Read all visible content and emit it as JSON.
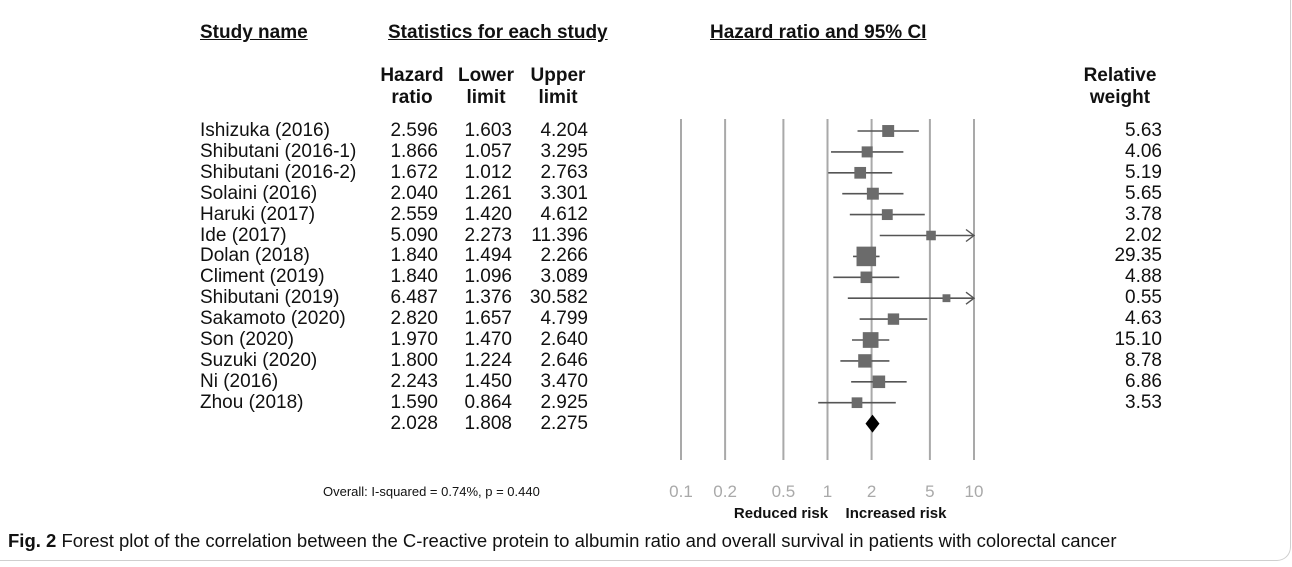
{
  "headers": {
    "study_name": "Study name",
    "statistics": "Statistics for each study",
    "plot_title": "Hazard ratio and 95% CI",
    "col_hr": [
      "Hazard",
      "ratio"
    ],
    "col_lower": [
      "Lower",
      "limit"
    ],
    "col_upper": [
      "Upper",
      "limit"
    ],
    "col_weight": [
      "Relative",
      "weight"
    ]
  },
  "overall_note": "Overall: I-squared = 0.74%, p = 0.440",
  "risk_labels": {
    "left": "Reduced risk",
    "right": "Increased risk"
  },
  "caption": {
    "label": "Fig. 2",
    "text": "Forest plot of the correlation between the C-reactive protein to albumin ratio and overall survival in patients with colorectal cancer"
  },
  "chart_data": {
    "type": "forest",
    "x_scale": "log",
    "xlim": [
      0.1,
      10
    ],
    "x_ticks": [
      "0.1",
      "0.2",
      "0.5",
      "1",
      "2",
      "5",
      "10"
    ],
    "x_tick_values": [
      0.1,
      0.2,
      0.5,
      1,
      2,
      5,
      10
    ],
    "studies": [
      {
        "name": "Ishizuka (2016)",
        "hr": "2.596",
        "lower": "1.603",
        "upper": "4.204",
        "weight": "5.63"
      },
      {
        "name": "Shibutani (2016-1)",
        "hr": "1.866",
        "lower": "1.057",
        "upper": "3.295",
        "weight": "4.06"
      },
      {
        "name": "Shibutani (2016-2)",
        "hr": "1.672",
        "lower": "1.012",
        "upper": "2.763",
        "weight": "5.19"
      },
      {
        "name": "Solaini (2016)",
        "hr": "2.040",
        "lower": "1.261",
        "upper": "3.301",
        "weight": "5.65"
      },
      {
        "name": "Haruki (2017)",
        "hr": "2.559",
        "lower": "1.420",
        "upper": "4.612",
        "weight": "3.78"
      },
      {
        "name": "Ide (2017)",
        "hr": "5.090",
        "lower": "2.273",
        "upper": "11.396",
        "weight": "2.02"
      },
      {
        "name": "Dolan (2018)",
        "hr": "1.840",
        "lower": "1.494",
        "upper": "2.266",
        "weight": "29.35"
      },
      {
        "name": "Climent (2019)",
        "hr": "1.840",
        "lower": "1.096",
        "upper": "3.089",
        "weight": "4.88"
      },
      {
        "name": "Shibutani (2019)",
        "hr": "6.487",
        "lower": "1.376",
        "upper": "30.582",
        "weight": "0.55"
      },
      {
        "name": "Sakamoto (2020)",
        "hr": "2.820",
        "lower": "1.657",
        "upper": "4.799",
        "weight": "4.63"
      },
      {
        "name": "Son (2020)",
        "hr": "1.970",
        "lower": "1.470",
        "upper": "2.640",
        "weight": "15.10"
      },
      {
        "name": "Suzuki (2020)",
        "hr": "1.800",
        "lower": "1.224",
        "upper": "2.646",
        "weight": "8.78"
      },
      {
        "name": "Ni (2016)",
        "hr": "2.243",
        "lower": "1.450",
        "upper": "3.470",
        "weight": "6.86"
      },
      {
        "name": "Zhou (2018)",
        "hr": "1.590",
        "lower": "0.864",
        "upper": "2.925",
        "weight": "3.53"
      }
    ],
    "overall": {
      "hr": "2.028",
      "lower": "1.808",
      "upper": "2.275"
    }
  }
}
